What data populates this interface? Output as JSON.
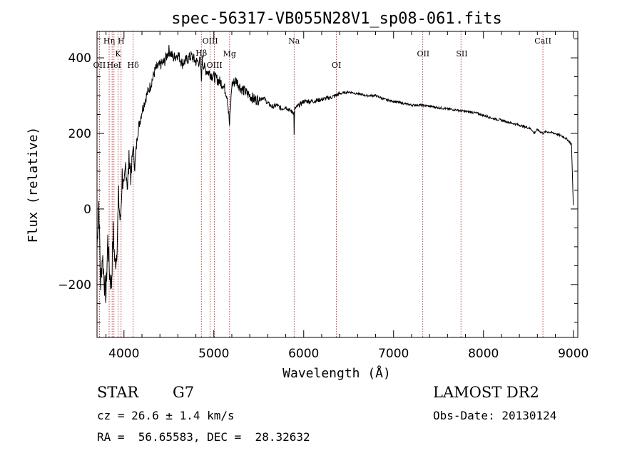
{
  "chart_data": {
    "type": "line",
    "title": "spec-56317-VB055N28V1_sp08-061.fits",
    "xlabel": "Wavelength (Å)",
    "ylabel": "Flux (relative)",
    "xlim": [
      3700,
      9050
    ],
    "ylim": [
      -340,
      470
    ],
    "xticks": [
      {
        "value": 4000,
        "label": "4000"
      },
      {
        "value": 5000,
        "label": "5000"
      },
      {
        "value": 6000,
        "label": "6000"
      },
      {
        "value": 7000,
        "label": "7000"
      },
      {
        "value": 8000,
        "label": "8000"
      },
      {
        "value": 9000,
        "label": "9000"
      }
    ],
    "yticks": [
      {
        "value": -200,
        "label": "−200"
      },
      {
        "value": 0,
        "label": "0"
      },
      {
        "value": 200,
        "label": "200"
      },
      {
        "value": 400,
        "label": "400"
      }
    ],
    "series": [
      {
        "color": "#000000",
        "x": [
          3700,
          3720,
          3740,
          3760,
          3780,
          3800,
          3820,
          3840,
          3860,
          3880,
          3900,
          3920,
          3940,
          3960,
          3980,
          4000,
          4020,
          4040,
          4060,
          4080,
          4100,
          4120,
          4150,
          4200,
          4250,
          4300,
          4350,
          4400,
          4450,
          4500,
          4550,
          4600,
          4650,
          4700,
          4750,
          4800,
          4850,
          4861,
          4870,
          4900,
          4950,
          5000,
          5050,
          5100,
          5150,
          5175,
          5200,
          5250,
          5300,
          5350,
          5400,
          5450,
          5500,
          5550,
          5600,
          5650,
          5700,
          5750,
          5800,
          5850,
          5890,
          5893,
          5900,
          5950,
          6000,
          6100,
          6200,
          6300,
          6400,
          6500,
          6600,
          6700,
          6800,
          6900,
          7000,
          7100,
          7200,
          7300,
          7400,
          7500,
          7600,
          7700,
          7800,
          7900,
          8000,
          8100,
          8200,
          8300,
          8400,
          8500,
          8540,
          8560,
          8600,
          8662,
          8700,
          8800,
          8900,
          8950,
          8980,
          9000
        ],
        "y": [
          -100,
          20,
          -200,
          -120,
          -190,
          -230,
          -80,
          -170,
          -200,
          -60,
          -150,
          -110,
          30,
          -40,
          90,
          40,
          120,
          60,
          140,
          80,
          170,
          110,
          200,
          260,
          300,
          330,
          370,
          380,
          390,
          420,
          400,
          410,
          385,
          395,
          405,
          390,
          390,
          340,
          395,
          370,
          360,
          350,
          340,
          330,
          300,
          220,
          330,
          340,
          320,
          310,
          300,
          290,
          290,
          295,
          280,
          270,
          275,
          265,
          270,
          260,
          255,
          200,
          265,
          275,
          285,
          285,
          290,
          295,
          305,
          310,
          305,
          300,
          300,
          290,
          285,
          280,
          275,
          275,
          272,
          268,
          265,
          262,
          258,
          255,
          248,
          240,
          235,
          228,
          222,
          215,
          210,
          200,
          210,
          200,
          205,
          200,
          190,
          180,
          170,
          10
        ]
      }
    ],
    "lines_top": [
      {
        "wavelength": 3835,
        "label": "Hη"
      },
      {
        "wavelength": 3968,
        "label": "H"
      },
      {
        "wavelength": 3934,
        "label": "K"
      },
      {
        "wavelength": 4959,
        "label": "OIII"
      },
      {
        "wavelength": 5893,
        "label": "Na"
      },
      {
        "wavelength": 5175,
        "label": "Mg"
      },
      {
        "wavelength": 7330,
        "label": "OII"
      },
      {
        "wavelength": 7760,
        "label": "SII"
      },
      {
        "wavelength": 8662,
        "label": "CaII"
      },
      {
        "wavelength": 6364,
        "label": "OI"
      }
    ],
    "lines_low": [
      {
        "wavelength": 3727,
        "label": "OII"
      },
      {
        "wavelength": 3889,
        "label": "HeI"
      },
      {
        "wavelength": 4102,
        "label": "Hδ"
      },
      {
        "wavelength": 4861,
        "label": "Hβ"
      },
      {
        "wavelength": 5007,
        "label": "OIII"
      }
    ],
    "marker_wavelengths": [
      3727,
      3835,
      3868,
      3889,
      3934,
      3968,
      4102,
      4861,
      4959,
      5007,
      5175,
      5893,
      6364,
      7325,
      7750,
      8662
    ],
    "colors": {
      "spectrum": "#000000",
      "marker": "#b22222"
    },
    "grid": false
  },
  "info": {
    "class": "STAR",
    "subclass": "G7",
    "survey": "LAMOST DR2",
    "cz": "cz = 26.6 ± 1.4 km/s",
    "obs_date": "Obs-Date: 20130124",
    "coords": "RA =  56.65583, DEC =  28.32632"
  }
}
